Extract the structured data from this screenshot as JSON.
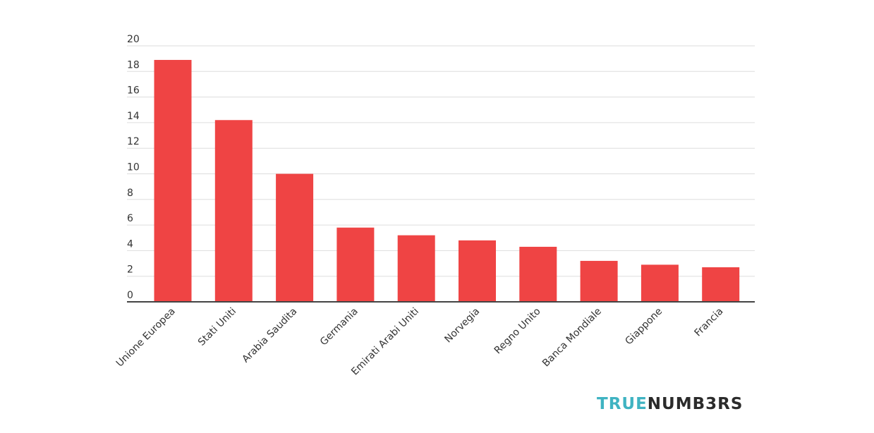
{
  "brand": {
    "part1": "TRUE",
    "part2": "NUMB3RS",
    "color1": "#3fb3c2",
    "color2": "#2b2b2b"
  },
  "chart_data": {
    "type": "bar",
    "categories": [
      "Unione Europea",
      "Stati Uniti",
      "Arabia Saudita",
      "Germania",
      "Emirati Arabi Uniti",
      "Norvegia",
      "Regno Unito",
      "Banca Mondiale",
      "Giappone",
      "Francia"
    ],
    "values": [
      18.9,
      14.2,
      10.0,
      5.8,
      5.2,
      4.8,
      4.3,
      3.2,
      2.9,
      2.7
    ],
    "title": "",
    "xlabel": "",
    "ylabel": "",
    "ylim": [
      0,
      20
    ],
    "yticks": [
      0,
      2,
      4,
      6,
      8,
      10,
      12,
      14,
      16,
      18,
      20
    ],
    "grid": true,
    "legend": "none",
    "bar_color": "#ef4444",
    "grid_color": "#dddddd",
    "axis_color": "#444444"
  }
}
